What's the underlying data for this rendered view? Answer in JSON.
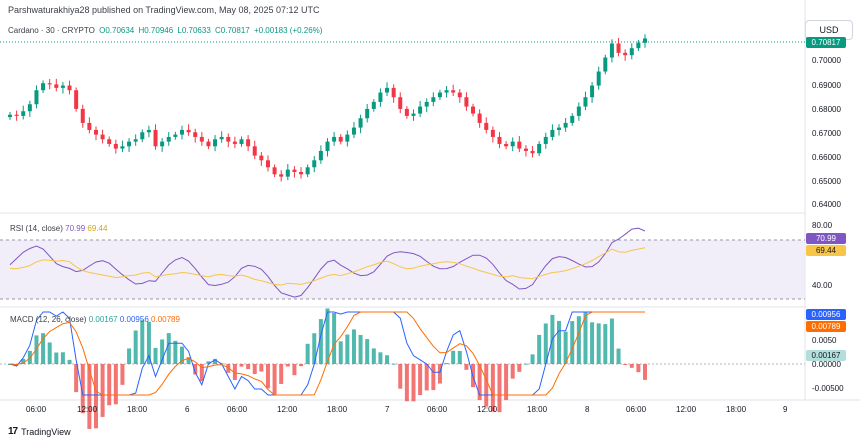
{
  "header": {
    "publish_line": "Parshwaturakhiya28 published on TradingView.com, May 08, 2025 07:12 UTC",
    "symbol_line": "Cardano · 30 · CRYPTO",
    "open": "O0.70634",
    "high": "H0.70946",
    "low": "L0.70633",
    "close": "C0.70817",
    "change": "+0.00183 (+0.26%)",
    "currency": "USD"
  },
  "price_axis": {
    "labels": [
      "0.70000",
      "0.69000",
      "0.68000",
      "0.67000",
      "0.66000",
      "0.65000",
      "0.64000"
    ],
    "current_price_tag": "0.70817"
  },
  "rsi": {
    "label": "RSI (14, close)",
    "value": "70.99",
    "ma_value": "69.44",
    "axis_labels": [
      "80.00",
      "40.00"
    ],
    "tag_value": "70.99",
    "tag_ma": "69.44",
    "colors": {
      "line": "#7e57c2",
      "ma": "#f7c548",
      "band": "#ede7f6"
    }
  },
  "macd": {
    "label": "MACD (12, 26, close)",
    "histogram": "0.00167",
    "macd_value": "0.00956",
    "signal_value": "0.00789",
    "axis_labels": [
      "0.0050",
      "0.00000",
      "-0.00500"
    ],
    "tag_macd": "0.00956",
    "tag_signal": "0.00789",
    "tag_hist": "0.00167",
    "colors": {
      "macd": "#2962ff",
      "signal": "#ff6d00",
      "hist_pos": "#26a69a",
      "hist_neg": "#ef5350"
    }
  },
  "time_axis": [
    "06:00",
    "12:00",
    "18:00",
    "6",
    "06:00",
    "12:00",
    "18:00",
    "7",
    "06:00",
    "12:00",
    "18:00",
    "8",
    "06:00",
    "12:00",
    "18:00",
    "9"
  ],
  "footer": {
    "brand": "TradingView"
  },
  "colors": {
    "up": "#089981",
    "down": "#f23645"
  },
  "chart_data": {
    "type": "candlestick",
    "close_series": [
      0.6755,
      0.675,
      0.677,
      0.68,
      0.686,
      0.689,
      0.6885,
      0.687,
      0.688,
      0.686,
      0.678,
      0.672,
      0.669,
      0.667,
      0.665,
      0.663,
      0.661,
      0.662,
      0.664,
      0.665,
      0.668,
      0.669,
      0.662,
      0.664,
      0.666,
      0.667,
      0.669,
      0.668,
      0.666,
      0.664,
      0.662,
      0.665,
      0.666,
      0.664,
      0.663,
      0.665,
      0.662,
      0.658,
      0.656,
      0.653,
      0.65,
      0.649,
      0.652,
      0.651,
      0.65,
      0.653,
      0.656,
      0.66,
      0.664,
      0.666,
      0.664,
      0.667,
      0.67,
      0.674,
      0.678,
      0.681,
      0.685,
      0.687,
      0.683,
      0.678,
      0.675,
      0.676,
      0.679,
      0.681,
      0.683,
      0.685,
      0.686,
      0.685,
      0.683,
      0.679,
      0.676,
      0.672,
      0.669,
      0.666,
      0.663,
      0.662,
      0.664,
      0.661,
      0.66,
      0.659,
      0.663,
      0.666,
      0.669,
      0.67,
      0.672,
      0.675,
      0.679,
      0.683,
      0.688,
      0.694,
      0.7,
      0.706,
      0.702,
      0.701,
      0.704,
      0.7063,
      0.70817
    ],
    "ylim": [
      0.639,
      0.7075
    ]
  }
}
